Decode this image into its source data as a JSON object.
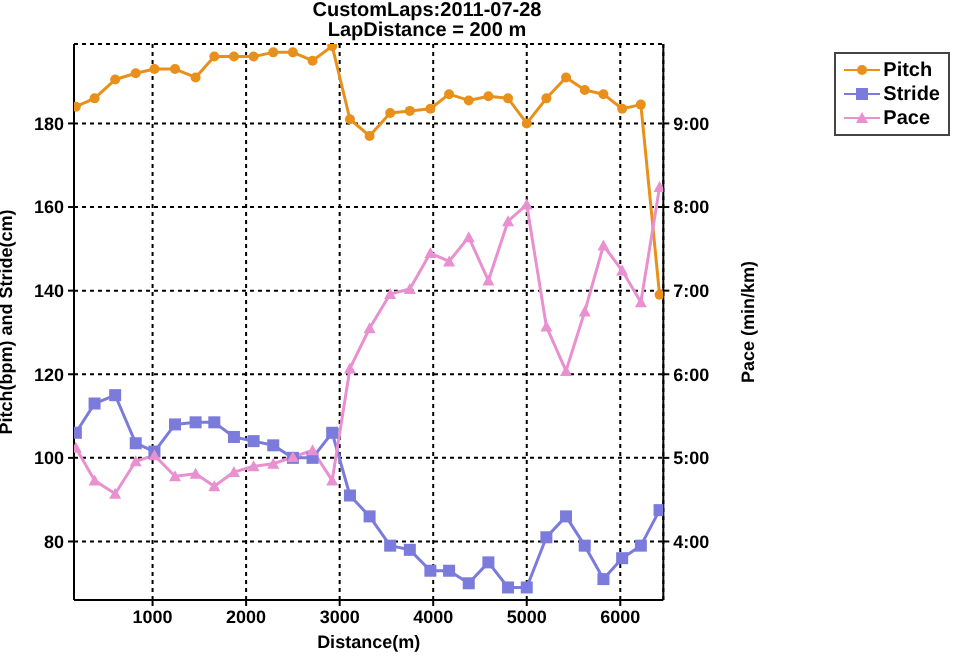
{
  "chart_data": {
    "type": "line",
    "title": "CustomLaps:2011-07-28",
    "subtitle": "LapDistance = 200 m",
    "xlabel": "Distance(m)",
    "ylabel": "Pitch(bpm) and Stride(cm)",
    "y2label": "Pace (min/km)",
    "x": [
      180,
      380,
      600,
      820,
      1020,
      1240,
      1460,
      1660,
      1870,
      2080,
      2290,
      2500,
      2710,
      2920,
      3110,
      3320,
      3540,
      3750,
      3970,
      4170,
      4380,
      4590,
      4800,
      5000,
      5210,
      5420,
      5620,
      5820,
      6020,
      6220,
      6420
    ],
    "series": [
      {
        "name": "Pitch",
        "color": "#e8901a",
        "marker": "circle",
        "values": [
          184,
          186,
          190.5,
          192,
          193,
          193,
          191,
          196,
          196,
          196,
          197,
          197,
          195,
          198.5,
          181,
          177,
          182.5,
          183,
          183.5,
          187,
          185.5,
          186.5,
          186,
          180,
          186,
          191,
          188,
          187,
          183.5,
          184.5,
          139
        ]
      },
      {
        "name": "Stride",
        "color": "#7b7bdc",
        "marker": "square",
        "values": [
          106,
          113,
          115,
          103.5,
          101.5,
          108,
          108.5,
          108.5,
          105,
          104,
          103,
          100,
          100,
          106,
          91,
          86,
          79,
          78,
          73,
          73,
          70,
          75,
          69,
          69,
          81,
          86,
          79,
          71,
          76,
          79,
          87.5
        ]
      },
      {
        "name": "Pace",
        "color": "#e890d0",
        "marker": "triangle",
        "axis": "y2",
        "values": [
          5.12,
          4.73,
          4.57,
          4.96,
          5.03,
          4.78,
          4.81,
          4.66,
          4.83,
          4.9,
          4.93,
          5.01,
          5.09,
          4.73,
          6.07,
          6.55,
          6.96,
          7.02,
          7.45,
          7.35,
          7.64,
          7.12,
          7.83,
          8.03,
          6.57,
          6.04,
          6.75,
          7.54,
          7.24,
          6.86,
          8.24
        ]
      }
    ],
    "xlim": [
      160,
      6460
    ],
    "xticks": [
      1000,
      2000,
      3000,
      4000,
      5000,
      6000
    ],
    "ylim": [
      66,
      199
    ],
    "yticks": [
      80,
      100,
      120,
      140,
      160,
      180
    ],
    "y2lim": [
      3.3,
      9.95
    ],
    "y2ticks": [
      {
        "value": 4,
        "label": "4:00"
      },
      {
        "value": 5,
        "label": "5:00"
      },
      {
        "value": 6,
        "label": "6:00"
      },
      {
        "value": 7,
        "label": "7:00"
      },
      {
        "value": 8,
        "label": "8:00"
      },
      {
        "value": 9,
        "label": "9:00"
      }
    ],
    "grid": true,
    "legend": "top right",
    "line_style": "solid"
  }
}
